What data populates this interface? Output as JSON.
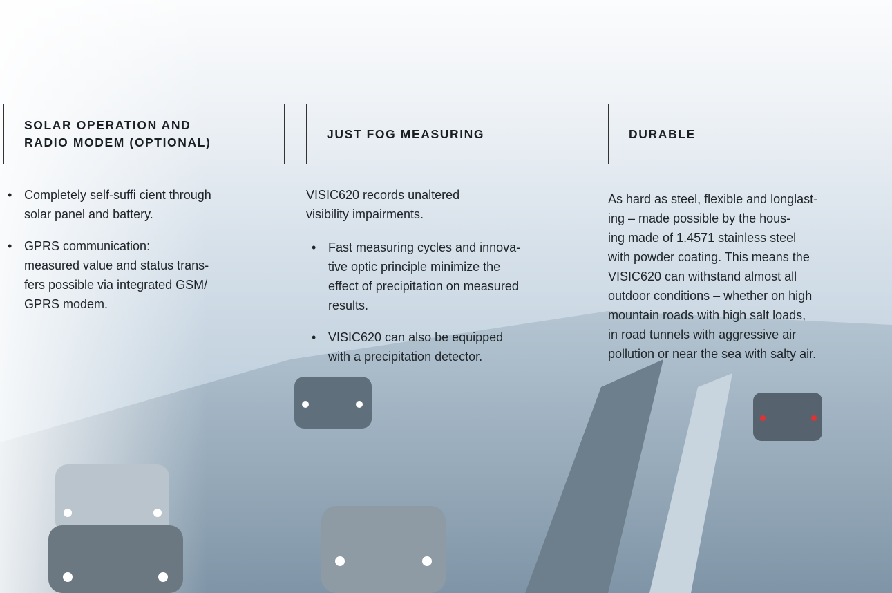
{
  "columns": [
    {
      "heading": [
        "SOLAR OPERATION AND",
        "RADIO MODEM (OPTIONAL)"
      ],
      "blocks": [
        {
          "bullets": [
            [
              "Completely self-suffi cient through",
              "solar panel and battery."
            ],
            [
              "GPRS communication:",
              "measured value and status trans-",
              "fers possible via integrated GSM/",
              "GPRS modem."
            ]
          ]
        }
      ]
    },
    {
      "heading": [
        "JUST FOG MEASURING"
      ],
      "blocks": [
        {
          "paragraph": [
            "VISIC620 records unaltered",
            "visibility impairments."
          ]
        },
        {
          "bullets": [
            [
              "Fast measuring cycles and innova-",
              "tive optic principle minimize the",
              "effect of precipitation on measured",
              "results."
            ],
            [
              "VISIC620 can also be equipped",
              "with a precipitation detector."
            ]
          ]
        }
      ]
    },
    {
      "heading": [
        "DURABLE"
      ],
      "blocks": [
        {
          "paragraph": [
            "As hard as steel, flexible and longlast-",
            "ing – made possible by the hous-",
            "ing made of 1.4571 stainless steel",
            "with powder coating. This means the",
            "VISIC620 can withstand almost all",
            "outdoor conditions – whether on high",
            "mountain roads with high salt loads,",
            "in road tunnels with aggressive air",
            "pollution or near the sea with salty air."
          ]
        }
      ]
    }
  ]
}
